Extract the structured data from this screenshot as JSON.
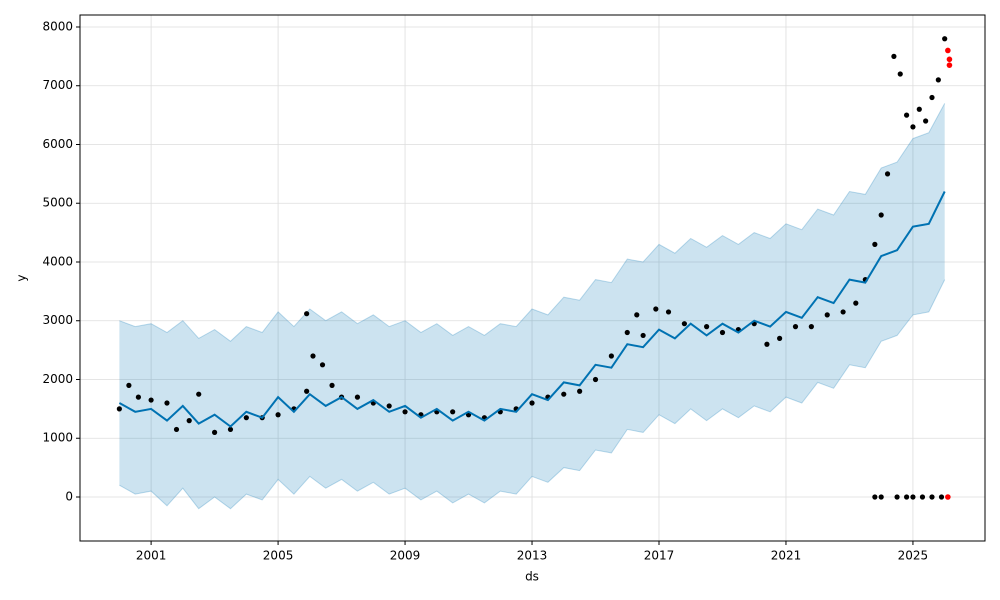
{
  "chart_data": {
    "type": "line",
    "x_label": "ds",
    "y_label": "y",
    "xlim": [
      1998.76,
      2027.27
    ],
    "ylim": [
      -749,
      8204
    ],
    "xticks": [
      2001,
      2005,
      2009,
      2013,
      2017,
      2021,
      2025
    ],
    "yticks": [
      0,
      1000,
      2000,
      3000,
      4000,
      5000,
      6000,
      7000,
      8000
    ],
    "grid": true,
    "forecast": {
      "color": "#0072B2",
      "x": [
        2000.0,
        2000.5,
        2001.0,
        2001.5,
        2002.0,
        2002.5,
        2003.0,
        2003.5,
        2004.0,
        2004.5,
        2005.0,
        2005.5,
        2006.0,
        2006.5,
        2007.0,
        2007.5,
        2008.0,
        2008.5,
        2009.0,
        2009.5,
        2010.0,
        2010.5,
        2011.0,
        2011.5,
        2012.0,
        2012.5,
        2013.0,
        2013.5,
        2014.0,
        2014.5,
        2015.0,
        2015.5,
        2016.0,
        2016.5,
        2017.0,
        2017.5,
        2018.0,
        2018.5,
        2019.0,
        2019.5,
        2020.0,
        2020.5,
        2021.0,
        2021.5,
        2022.0,
        2022.5,
        2023.0,
        2023.5,
        2024.0,
        2024.5,
        2025.0,
        2025.5,
        2026.0
      ],
      "yhat": [
        1600,
        1450,
        1500,
        1300,
        1550,
        1250,
        1400,
        1200,
        1450,
        1350,
        1700,
        1450,
        1750,
        1550,
        1700,
        1500,
        1650,
        1450,
        1550,
        1350,
        1500,
        1300,
        1450,
        1300,
        1500,
        1450,
        1750,
        1650,
        1950,
        1900,
        2250,
        2200,
        2600,
        2550,
        2850,
        2700,
        2950,
        2750,
        2950,
        2800,
        3000,
        2900,
        3150,
        3050,
        3400,
        3300,
        3700,
        3650,
        4100,
        4200,
        4600,
        4650,
        5200
      ],
      "lower": [
        200,
        50,
        100,
        -150,
        150,
        -200,
        0,
        -200,
        50,
        -50,
        300,
        50,
        350,
        150,
        300,
        100,
        250,
        50,
        150,
        -50,
        100,
        -100,
        50,
        -100,
        100,
        50,
        350,
        250,
        500,
        450,
        800,
        750,
        1150,
        1100,
        1400,
        1250,
        1500,
        1300,
        1500,
        1350,
        1550,
        1450,
        1700,
        1600,
        1950,
        1850,
        2250,
        2200,
        2650,
        2750,
        3100,
        3150,
        3700
      ],
      "upper": [
        3000,
        2900,
        2950,
        2800,
        3000,
        2700,
        2850,
        2650,
        2900,
        2800,
        3150,
        2900,
        3200,
        3000,
        3150,
        2950,
        3100,
        2900,
        3000,
        2800,
        2950,
        2750,
        2900,
        2750,
        2950,
        2900,
        3200,
        3100,
        3400,
        3350,
        3700,
        3650,
        4050,
        4000,
        4300,
        4150,
        4400,
        4250,
        4450,
        4300,
        4500,
        4400,
        4650,
        4550,
        4900,
        4800,
        5200,
        5150,
        5600,
        5700,
        6100,
        6200,
        6700
      ]
    },
    "observed": {
      "color": "#000000",
      "x": [
        2000.0,
        2000.3,
        2000.6,
        2001.0,
        2001.5,
        2001.8,
        2002.2,
        2002.5,
        2003.0,
        2003.5,
        2004.0,
        2004.5,
        2005.0,
        2005.5,
        2005.9,
        2005.9,
        2006.1,
        2006.4,
        2006.7,
        2007.0,
        2007.5,
        2008.0,
        2008.5,
        2009.0,
        2009.5,
        2010.0,
        2010.5,
        2011.0,
        2011.5,
        2012.0,
        2012.5,
        2013.0,
        2013.5,
        2014.0,
        2014.5,
        2015.0,
        2015.5,
        2016.0,
        2016.3,
        2016.5,
        2016.9,
        2017.3,
        2017.8,
        2018.5,
        2019.0,
        2019.5,
        2020.0,
        2020.4,
        2020.8,
        2021.3,
        2021.8,
        2022.3,
        2022.8,
        2023.2,
        2023.5,
        2023.8,
        2024.0,
        2024.2,
        2024.4,
        2024.6,
        2024.8,
        2025.0,
        2025.2,
        2025.4,
        2025.6,
        2025.8,
        2026.0,
        2023.8,
        2024.0,
        2024.5,
        2024.8,
        2025.0,
        2025.3,
        2025.6,
        2025.9
      ],
      "y": [
        1500,
        1900,
        1700,
        1650,
        1600,
        1150,
        1300,
        1750,
        1100,
        1150,
        1350,
        1350,
        1400,
        1500,
        1800,
        3120,
        2400,
        2250,
        1900,
        1700,
        1700,
        1600,
        1550,
        1450,
        1400,
        1450,
        1450,
        1400,
        1350,
        1450,
        1500,
        1600,
        1700,
        1750,
        1800,
        2000,
        2400,
        2800,
        3100,
        2750,
        3200,
        3150,
        2950,
        2900,
        2800,
        2850,
        2950,
        2600,
        2700,
        2900,
        2900,
        3100,
        3150,
        3300,
        3700,
        4300,
        4800,
        5500,
        7500,
        7200,
        6500,
        6300,
        6600,
        6400,
        6800,
        7100,
        7800,
        0,
        0,
        0,
        0,
        0,
        0,
        0,
        0
      ]
    },
    "outliers": {
      "color": "#ff0000",
      "x": [
        2026.1,
        2026.15,
        2026.15,
        2026.1
      ],
      "y": [
        7600,
        7450,
        7350,
        0
      ]
    }
  }
}
